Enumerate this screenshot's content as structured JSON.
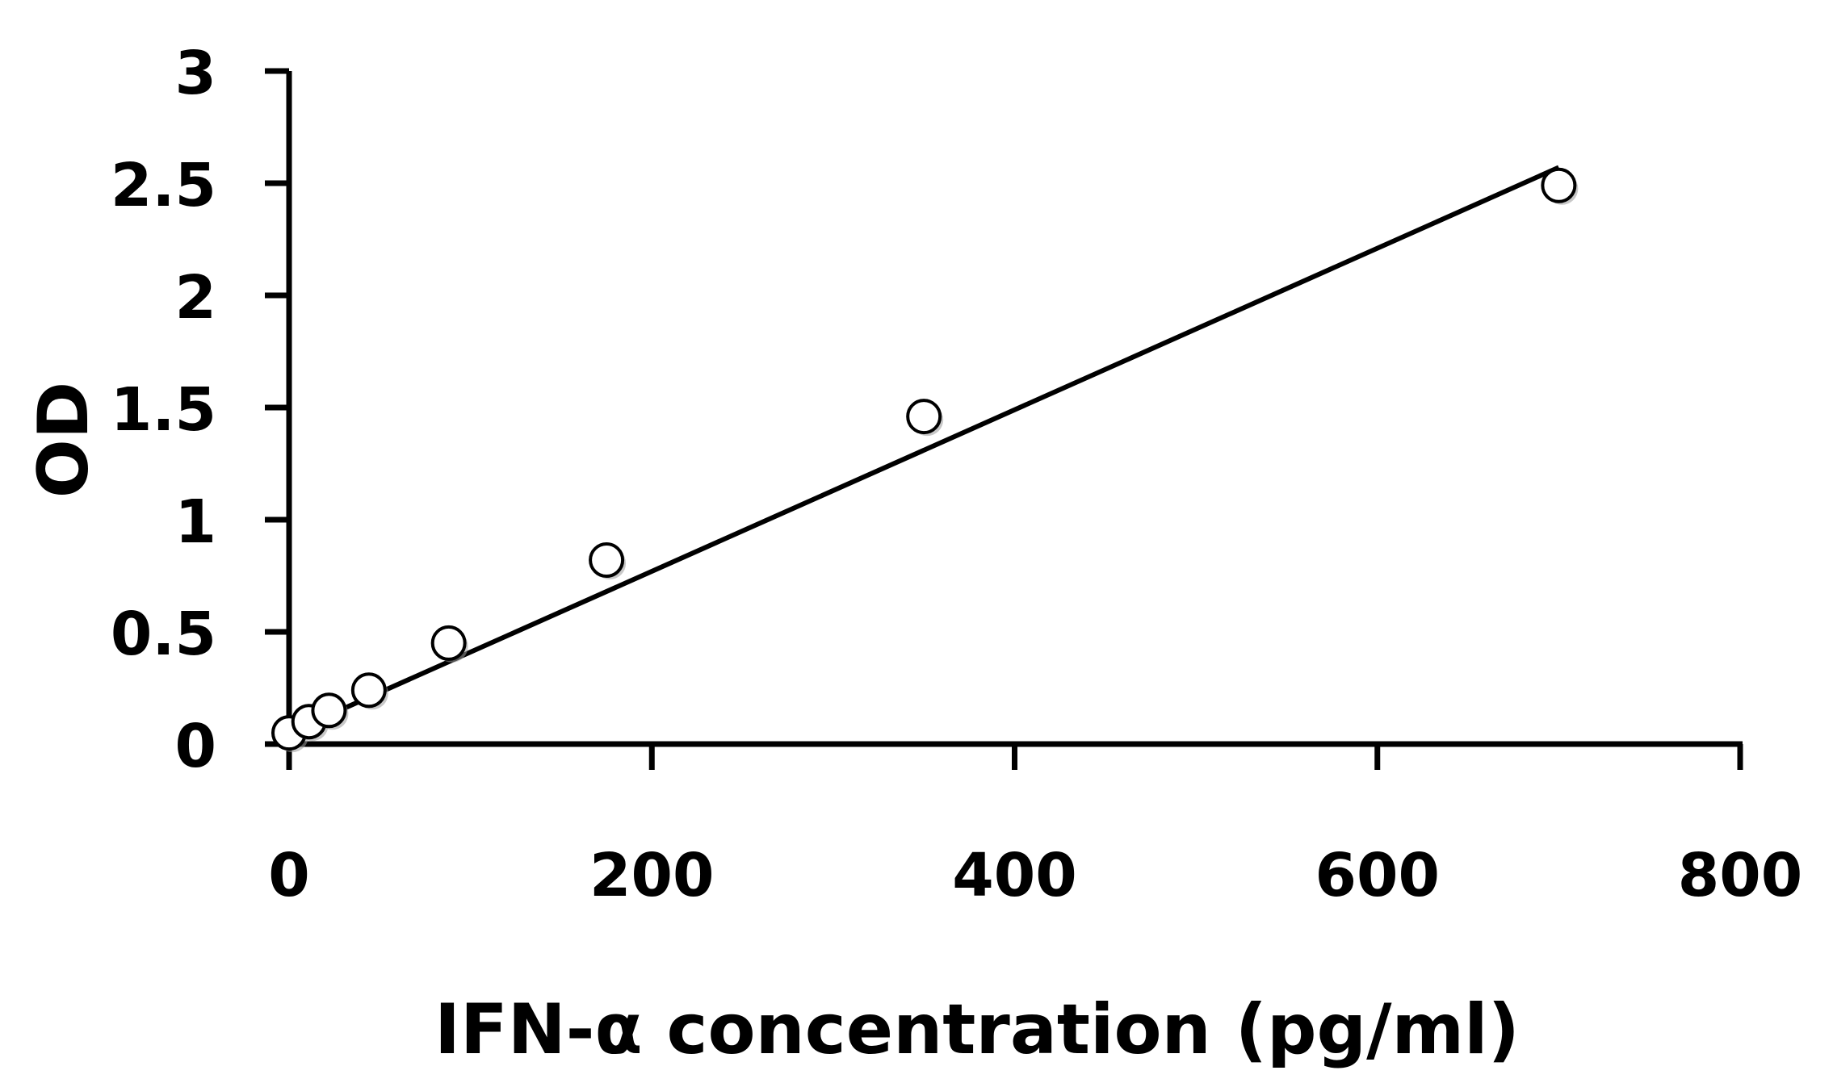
{
  "chart_data": {
    "type": "scatter",
    "title": "",
    "xlabel": "IFN-α concentration (pg/ml)",
    "ylabel": "OD",
    "xlim": [
      0,
      800
    ],
    "ylim": [
      0,
      3
    ],
    "xticks": [
      0,
      200,
      400,
      600,
      800
    ],
    "yticks": [
      0,
      0.5,
      1,
      1.5,
      2,
      2.5,
      3
    ],
    "xtick_labels": [
      "0",
      "200",
      "400",
      "600",
      "800"
    ],
    "ytick_labels": [
      "0",
      "0.5",
      "1",
      "1.5",
      "2",
      "2.5",
      "3"
    ],
    "grid": false,
    "legend": "none",
    "series": [
      {
        "x": [
          0,
          11,
          22,
          44,
          88,
          175,
          350,
          700
        ],
        "y": [
          0.05,
          0.1,
          0.15,
          0.24,
          0.45,
          0.82,
          1.46,
          2.49
        ],
        "marker": "open-circle"
      }
    ],
    "trendline": {
      "type": "linear",
      "x": [
        0,
        700
      ],
      "y": [
        0.05,
        2.57
      ]
    },
    "colors": {
      "marker_fill": "#ffffff",
      "marker_stroke": "#000000",
      "line": "#000000",
      "axis": "#000000"
    }
  }
}
